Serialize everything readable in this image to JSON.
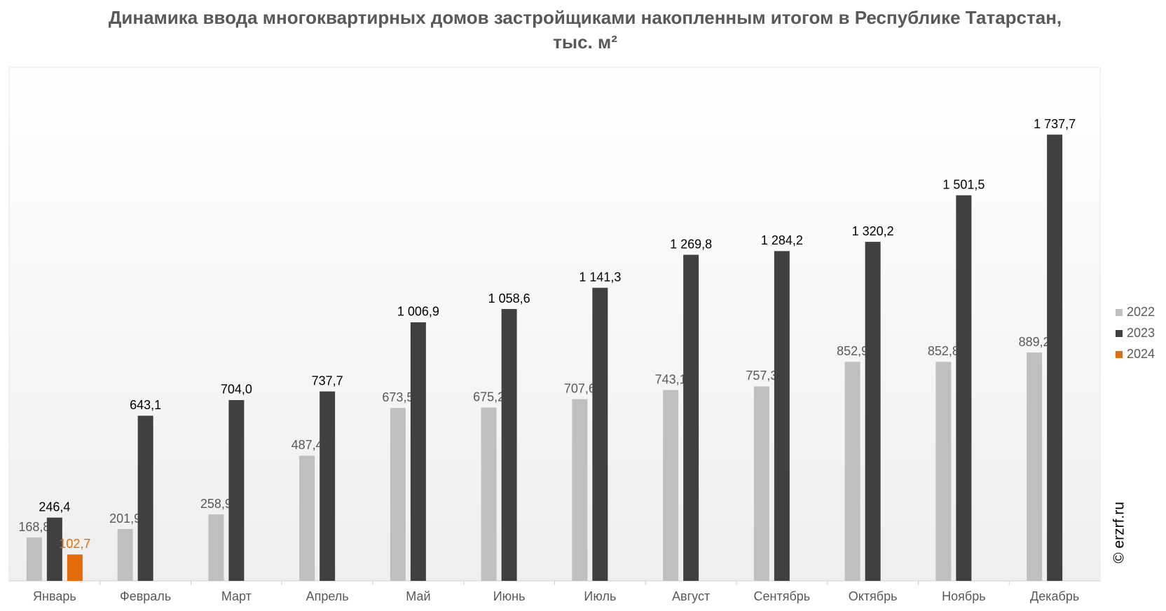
{
  "chart_data": {
    "type": "bar",
    "title": "Динамика ввода многоквартирных домов застройщиками накопленным итогом в Республике Татарстан, тыс. м²",
    "watermark": "© erzrf.ru",
    "categories": [
      "Январь",
      "Февраль",
      "Март",
      "Апрель",
      "Май",
      "Июнь",
      "Июль",
      "Август",
      "Сентябрь",
      "Октябрь",
      "Ноябрь",
      "Декабрь"
    ],
    "series": [
      {
        "name": "2022",
        "color": "#bfbfbf",
        "label_color": "#595959",
        "values": [
          168.8,
          201.9,
          258.9,
          487.4,
          673.5,
          675.2,
          707.6,
          743.1,
          757.3,
          852.9,
          852.8,
          889.2
        ],
        "value_labels": [
          "168,8",
          "201,9",
          "258,9",
          "487,4",
          "673,5",
          "675,2",
          "707,6",
          "743,1",
          "757,3",
          "852,9",
          "852,8",
          "889,2"
        ]
      },
      {
        "name": "2023",
        "color": "#404040",
        "label_color": "#000000",
        "values": [
          246.4,
          643.1,
          704.0,
          737.7,
          1006.9,
          1058.6,
          1141.3,
          1269.8,
          1284.2,
          1320.2,
          1501.5,
          1737.7
        ],
        "value_labels": [
          "246,4",
          "643,1",
          "704,0",
          "737,7",
          "1 006,9",
          "1 058,6",
          "1 141,3",
          "1 269,8",
          "1 284,2",
          "1 320,2",
          "1 501,5",
          "1 737,7"
        ]
      },
      {
        "name": "2024",
        "color": "#e36c09",
        "label_color": "#e36c09",
        "values": [
          102.7,
          null,
          null,
          null,
          null,
          null,
          null,
          null,
          null,
          null,
          null,
          null
        ],
        "value_labels": [
          "102,7",
          null,
          null,
          null,
          null,
          null,
          null,
          null,
          null,
          null,
          null,
          null
        ]
      }
    ],
    "ylim": [
      0,
      2000
    ],
    "grid": false,
    "legend": "right"
  }
}
